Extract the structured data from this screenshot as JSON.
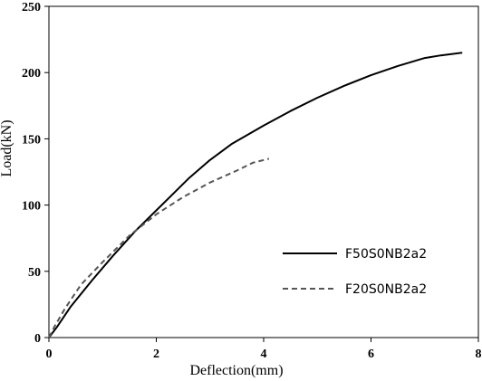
{
  "chart_data": {
    "type": "line",
    "title": "",
    "xlabel": "Deflection(mm)",
    "ylabel": "Load(kN)",
    "xlim": [
      0,
      8
    ],
    "ylim": [
      0,
      250
    ],
    "xticks": [
      0,
      2,
      4,
      6,
      8
    ],
    "yticks": [
      0,
      50,
      100,
      150,
      200,
      250
    ],
    "grid": false,
    "legend_position": "right",
    "series": [
      {
        "name": "F50S0NB2a2",
        "color": "#000000",
        "dash": "solid",
        "x": [
          0,
          0.15,
          0.4,
          0.8,
          1.2,
          1.6,
          2.0,
          2.3,
          2.6,
          3.0,
          3.4,
          4.0,
          4.5,
          5.0,
          5.5,
          6.0,
          6.5,
          7.0,
          7.3,
          7.5,
          7.7
        ],
        "y": [
          0,
          8,
          23,
          43,
          62,
          80,
          96,
          108,
          120,
          134,
          146,
          160,
          171,
          181,
          190,
          198,
          205,
          211,
          213,
          214,
          215
        ]
      },
      {
        "name": "F20S0NB2a2",
        "color": "#555555",
        "dash": "dashed",
        "x": [
          0,
          0.1,
          0.3,
          0.6,
          1.0,
          1.5,
          2.0,
          2.5,
          3.0,
          3.5,
          3.8,
          4.1
        ],
        "y": [
          0,
          8,
          22,
          40,
          57,
          77,
          93,
          106,
          117,
          126,
          132,
          135
        ]
      }
    ]
  }
}
